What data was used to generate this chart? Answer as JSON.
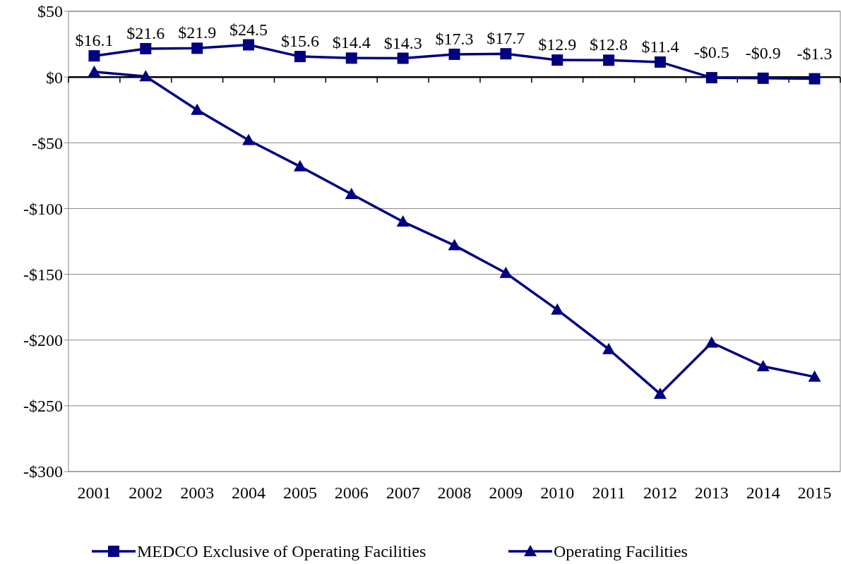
{
  "chart_data": {
    "type": "line",
    "categories": [
      "2001",
      "2002",
      "2003",
      "2004",
      "2005",
      "2006",
      "2007",
      "2008",
      "2009",
      "2010",
      "2011",
      "2012",
      "2013",
      "2014",
      "2015"
    ],
    "series": [
      {
        "name": "MEDCO Exclusive of Operating Facilities",
        "color": "#000080",
        "marker": "square",
        "values": [
          16.1,
          21.6,
          21.9,
          24.5,
          15.6,
          14.4,
          14.3,
          17.3,
          17.7,
          12.9,
          12.8,
          11.4,
          -0.5,
          -0.9,
          -1.3
        ],
        "value_labels": [
          "$16.1",
          "$21.6",
          "$21.9",
          "$24.5",
          "$15.6",
          "$14.4",
          "$14.3",
          "$17.3",
          "$17.7",
          "$12.9",
          "$12.8",
          "$11.4",
          "-$0.5",
          "-$0.9",
          "-$1.3"
        ]
      },
      {
        "name": "Operating Facilities",
        "color": "#000080",
        "marker": "triangle",
        "values": [
          4,
          0.5,
          -25,
          -48,
          -68,
          -89,
          -110,
          -128,
          -149,
          -177,
          -207,
          -241,
          -202,
          -220,
          -228
        ]
      }
    ],
    "ylim": [
      -300,
      50
    ],
    "yticks": [
      {
        "value": 50,
        "label": "$50"
      },
      {
        "value": 0,
        "label": "$0"
      },
      {
        "value": -50,
        "label": "-$50"
      },
      {
        "value": -100,
        "label": "-$100"
      },
      {
        "value": -150,
        "label": "-$150"
      },
      {
        "value": -200,
        "label": "-$200"
      },
      {
        "value": -250,
        "label": "-$250"
      },
      {
        "value": -300,
        "label": "-$300"
      }
    ],
    "grid": "y",
    "legend": "bottom",
    "line_style": "solid"
  }
}
